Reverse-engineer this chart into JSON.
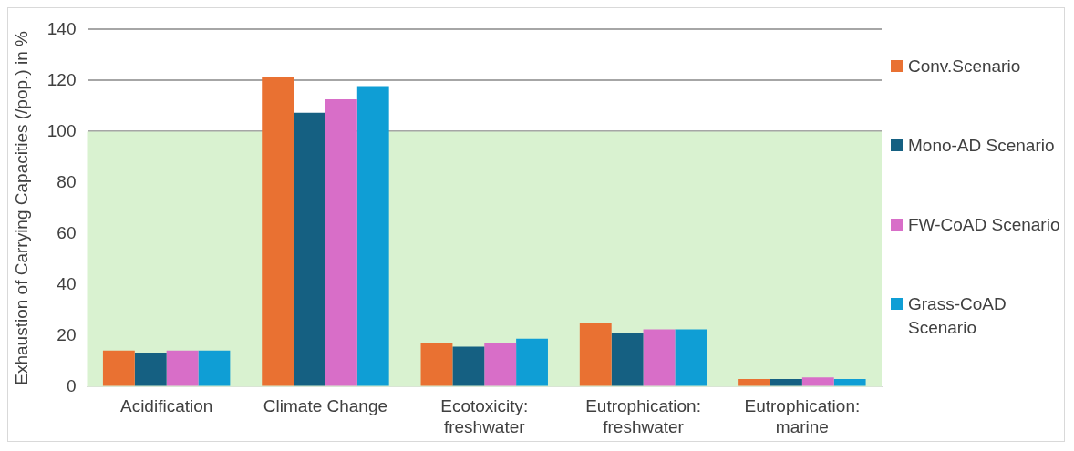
{
  "chart_data": {
    "type": "bar",
    "ylabel": "Exhaustion of Carrying Capacities (/pop.) in %",
    "categories": [
      "Acidification",
      "Climate Change",
      "Ecotoxicity: freshwater",
      "Eutrophication: freshwater",
      "Eutrophication: marine"
    ],
    "series": [
      {
        "name": "Conv.Scenario",
        "color": "#e97132",
        "values": [
          14.2,
          121.4,
          17.3,
          24.8,
          3.0
        ]
      },
      {
        "name": "Mono-AD Scenario",
        "color": "#156082",
        "values": [
          13.4,
          107.4,
          15.7,
          21.1,
          3.0
        ]
      },
      {
        "name": "FW-CoAD Scenario",
        "color": "#d86ec8",
        "values": [
          14.2,
          112.6,
          17.3,
          22.5,
          3.6
        ]
      },
      {
        "name": "Grass-CoAD Scenario",
        "color": "#0f9ed5",
        "values": [
          14.2,
          117.8,
          18.8,
          22.5,
          3.0
        ]
      }
    ],
    "ylim": [
      0,
      140
    ],
    "yticks": [
      0,
      20,
      40,
      60,
      80,
      100,
      120,
      140
    ],
    "grid": "y",
    "legend": "right",
    "bands": [
      {
        "axis": "y",
        "from": 0,
        "to": 100,
        "color": "#d9f2d0"
      }
    ]
  }
}
